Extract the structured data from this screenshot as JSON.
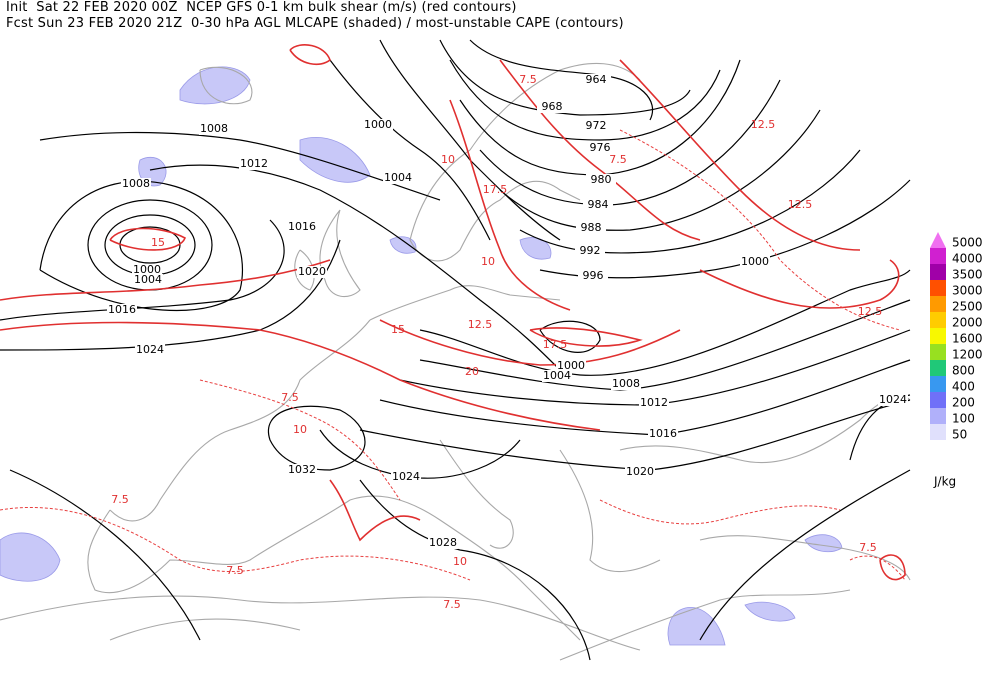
{
  "header": {
    "line1": "Init  Sat 22 FEB 2020 00Z  NCEP GFS 0-1 km bulk shear (m/s) (red contours)",
    "line2": "Fcst Sun 23 FEB 2020 21Z  0-30 hPa AGL MLCAPE (shaded) / most-unstable CAPE (contours)"
  },
  "legend": {
    "items": [
      {
        "label": "5000",
        "color": "#f070f0"
      },
      {
        "label": "4000",
        "color": "#d020d0"
      },
      {
        "label": "3500",
        "color": "#a000a8"
      },
      {
        "label": "3000",
        "color": "#ff5000"
      },
      {
        "label": "2500",
        "color": "#ff9a00"
      },
      {
        "label": "2000",
        "color": "#ffcc00"
      },
      {
        "label": "1600",
        "color": "#f8f800"
      },
      {
        "label": "1200",
        "color": "#98e020"
      },
      {
        "label": "800",
        "color": "#20c878"
      },
      {
        "label": "400",
        "color": "#3898f0"
      },
      {
        "label": "200",
        "color": "#7070f8"
      },
      {
        "label": "100",
        "color": "#b0b0fa"
      },
      {
        "label": "50",
        "color": "#e0e0fc"
      }
    ],
    "units": "J/kg"
  },
  "isobar_labels": [
    "964",
    "968",
    "972",
    "976",
    "980",
    "984",
    "988",
    "992",
    "996",
    "1000",
    "1000",
    "1004",
    "1008",
    "1012",
    "1016",
    "1020",
    "1008",
    "1000",
    "1004",
    "1016",
    "1024",
    "1000",
    "1004",
    "1008",
    "1012",
    "1016",
    "1020",
    "1024",
    "1024",
    "1028",
    "1032"
  ],
  "shear_labels": [
    "7.5",
    "10",
    "12.5",
    "15",
    "17.5",
    "20",
    "12.5",
    "10",
    "7.5",
    "12.5",
    "15",
    "7.5",
    "10",
    "17.5",
    "7.5",
    "12.5",
    "10",
    "7.5",
    "7.5",
    "7.5"
  ]
}
